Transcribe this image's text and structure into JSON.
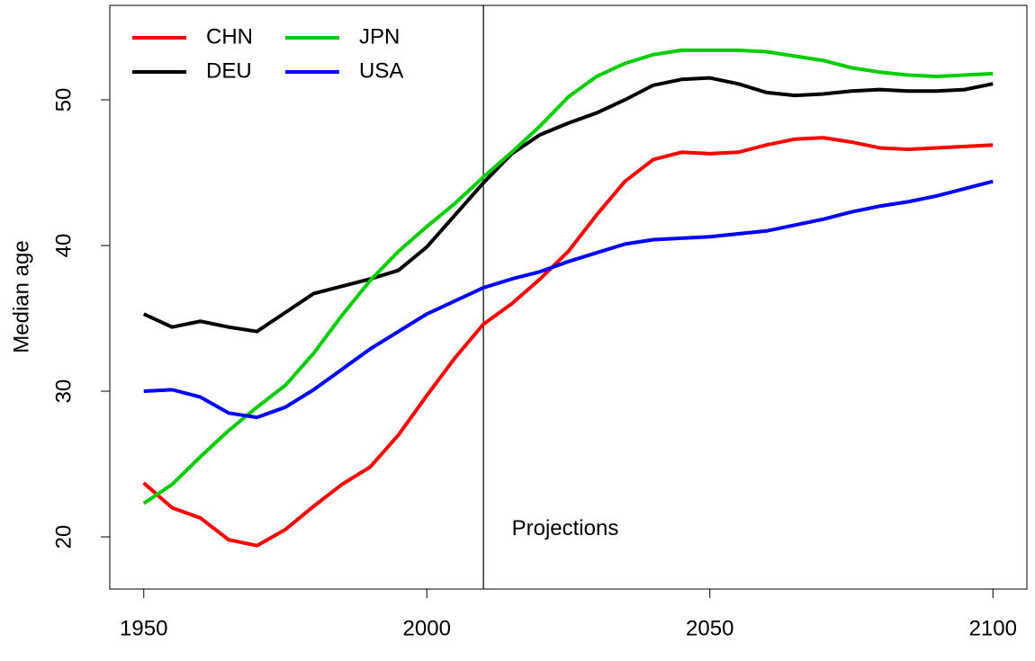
{
  "chart_data": {
    "type": "line",
    "ylabel": "Median age",
    "x": [
      1950,
      1955,
      1960,
      1965,
      1970,
      1975,
      1980,
      1985,
      1990,
      1995,
      2000,
      2005,
      2010,
      2015,
      2020,
      2025,
      2030,
      2035,
      2040,
      2045,
      2050,
      2055,
      2060,
      2065,
      2070,
      2075,
      2080,
      2085,
      2090,
      2095,
      2100
    ],
    "series": [
      {
        "name": "CHN",
        "color": "#ff0000",
        "values": [
          23.7,
          22.0,
          21.3,
          19.8,
          19.4,
          20.5,
          22.1,
          23.6,
          24.8,
          27.0,
          29.7,
          32.3,
          34.6,
          36.0,
          37.7,
          39.6,
          42.1,
          44.4,
          45.9,
          46.4,
          46.3,
          46.4,
          46.9,
          47.3,
          47.4,
          47.1,
          46.7,
          46.6,
          46.7,
          46.8,
          46.9
        ]
      },
      {
        "name": "DEU",
        "color": "#000000",
        "values": [
          35.3,
          34.4,
          34.8,
          34.4,
          34.1,
          35.4,
          36.7,
          37.2,
          37.7,
          38.3,
          39.9,
          42.1,
          44.3,
          46.3,
          47.6,
          48.4,
          49.1,
          50.0,
          51.0,
          51.4,
          51.5,
          51.1,
          50.5,
          50.3,
          50.4,
          50.6,
          50.7,
          50.6,
          50.6,
          50.7,
          51.1
        ]
      },
      {
        "name": "JPN",
        "color": "#00cd00",
        "values": [
          22.3,
          23.6,
          25.5,
          27.3,
          28.9,
          30.4,
          32.6,
          35.2,
          37.6,
          39.6,
          41.3,
          42.9,
          44.7,
          46.4,
          48.2,
          50.2,
          51.6,
          52.5,
          53.1,
          53.4,
          53.4,
          53.4,
          53.3,
          53.0,
          52.7,
          52.2,
          51.9,
          51.7,
          51.6,
          51.7,
          51.8
        ]
      },
      {
        "name": "USA",
        "color": "#0000ff",
        "values": [
          30.0,
          30.1,
          29.6,
          28.5,
          28.2,
          28.9,
          30.1,
          31.5,
          32.9,
          34.1,
          35.3,
          36.2,
          37.1,
          37.7,
          38.2,
          38.9,
          39.5,
          40.1,
          40.4,
          40.5,
          40.6,
          40.8,
          41.0,
          41.4,
          41.8,
          42.3,
          42.7,
          43.0,
          43.4,
          43.9,
          44.4
        ]
      }
    ],
    "xlim": [
      1944,
      2106
    ],
    "ylim": [
      16.42,
      56.48
    ],
    "xticks": [
      1950,
      2000,
      2050,
      2100
    ],
    "yticks": [
      20,
      30,
      40,
      50
    ],
    "vline": {
      "x": 2010,
      "label": "Projections",
      "label_x": 2015,
      "label_y": 20.5
    },
    "legend": "top-left",
    "grid": false
  }
}
